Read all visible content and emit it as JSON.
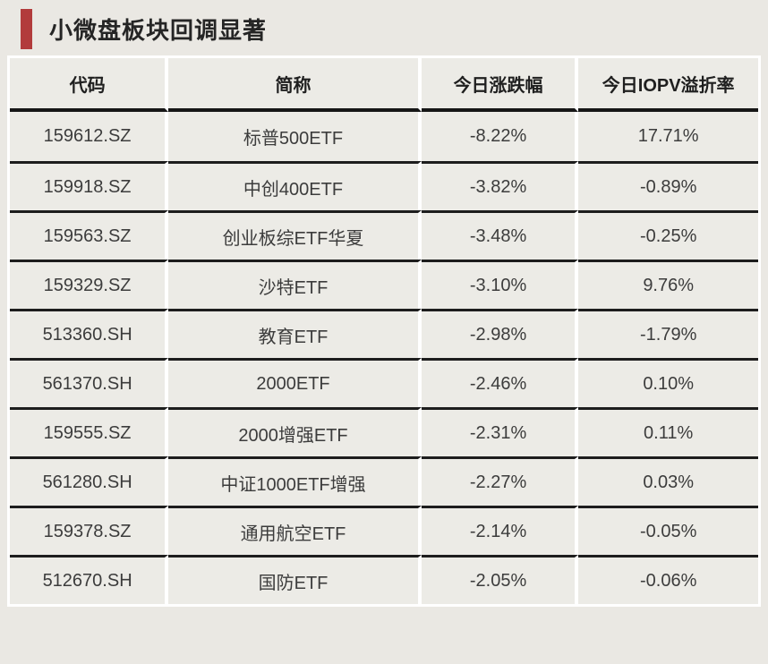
{
  "title": "小微盘板块回调显著",
  "colors": {
    "accent_red": "#b23b3c",
    "page_background": "#eae8e3",
    "cell_background": "#ecebe6",
    "rule_black": "#1d1d1d",
    "separator_white": "#ffffff"
  },
  "table": {
    "columns": [
      "代码",
      "简称",
      "今日涨跌幅",
      "今日IOPV溢折率"
    ],
    "rows": [
      {
        "code": "159612.SZ",
        "name": "标普500ETF",
        "change": "-8.22%",
        "iopv": "17.71%"
      },
      {
        "code": "159918.SZ",
        "name": "中创400ETF",
        "change": "-3.82%",
        "iopv": "-0.89%"
      },
      {
        "code": "159563.SZ",
        "name": "创业板综ETF华夏",
        "change": "-3.48%",
        "iopv": "-0.25%"
      },
      {
        "code": "159329.SZ",
        "name": "沙特ETF",
        "change": "-3.10%",
        "iopv": "9.76%"
      },
      {
        "code": "513360.SH",
        "name": "教育ETF",
        "change": "-2.98%",
        "iopv": "-1.79%"
      },
      {
        "code": "561370.SH",
        "name": "2000ETF",
        "change": "-2.46%",
        "iopv": "0.10%"
      },
      {
        "code": "159555.SZ",
        "name": "2000增强ETF",
        "change": "-2.31%",
        "iopv": "0.11%"
      },
      {
        "code": "561280.SH",
        "name": "中证1000ETF增强",
        "change": "-2.27%",
        "iopv": "0.03%"
      },
      {
        "code": "159378.SZ",
        "name": "通用航空ETF",
        "change": "-2.14%",
        "iopv": "-0.05%"
      },
      {
        "code": "512670.SH",
        "name": "国防ETF",
        "change": "-2.05%",
        "iopv": "-0.06%"
      }
    ]
  },
  "chart_data": {
    "type": "table",
    "title": "小微盘板块回调显著",
    "columns": [
      "代码",
      "简称",
      "今日涨跌幅",
      "今日IOPV溢折率"
    ],
    "rows": [
      [
        "159612.SZ",
        "标普500ETF",
        "-8.22%",
        "17.71%"
      ],
      [
        "159918.SZ",
        "中创400ETF",
        "-3.82%",
        "-0.89%"
      ],
      [
        "159563.SZ",
        "创业板综ETF华夏",
        "-3.48%",
        "-0.25%"
      ],
      [
        "159329.SZ",
        "沙特ETF",
        "-3.10%",
        "9.76%"
      ],
      [
        "513360.SH",
        "教育ETF",
        "-2.98%",
        "-1.79%"
      ],
      [
        "561370.SH",
        "2000ETF",
        "-2.46%",
        "0.10%"
      ],
      [
        "159555.SZ",
        "2000增强ETF",
        "-2.31%",
        "0.11%"
      ],
      [
        "561280.SH",
        "中证1000ETF增强",
        "-2.27%",
        "0.03%"
      ],
      [
        "159378.SZ",
        "通用航空ETF",
        "-2.14%",
        "-0.05%"
      ],
      [
        "512670.SH",
        "国防ETF",
        "-2.05%",
        "-0.06%"
      ]
    ],
    "change_values_pct": [
      -8.22,
      -3.82,
      -3.48,
      -3.1,
      -2.98,
      -2.46,
      -2.31,
      -2.27,
      -2.14,
      -2.05
    ],
    "iopv_premium_values_pct": [
      17.71,
      -0.89,
      -0.25,
      9.76,
      -1.79,
      0.1,
      0.11,
      0.03,
      -0.05,
      -0.06
    ]
  }
}
